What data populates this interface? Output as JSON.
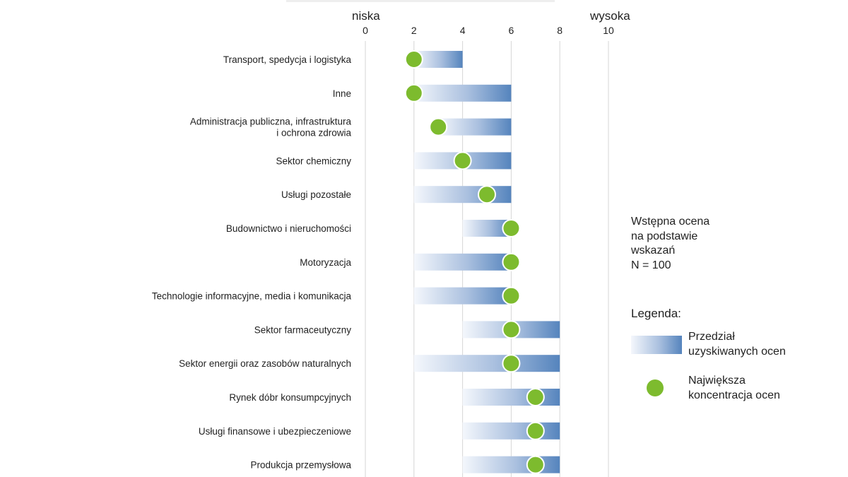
{
  "chart_data": {
    "type": "range-bar",
    "axis": {
      "low_label": "niska",
      "high_label": "wysoka",
      "ticks": [
        0,
        2,
        4,
        6,
        8,
        10
      ],
      "range": [
        0,
        10
      ]
    },
    "categories": [
      "Transport, spedycja i logistyka",
      "Inne",
      "Administracja publiczna, infrastruktura\ni ochrona zdrowia",
      "Sektor chemiczny",
      "Usługi pozostałe",
      "Budownictwo i nieruchomości",
      "Motoryzacja",
      "Technologie informacyjne, media i komunikacja",
      "Sektor farmaceutyczny",
      "Sektor energii oraz zasobów naturalnych",
      "Rynek dóbr konsumpcyjnych",
      "Usługi finansowe i ubezpieczeniowe",
      "Produkcja przemysłowa"
    ],
    "ranges": [
      [
        2,
        4
      ],
      [
        2,
        6
      ],
      [
        3,
        6
      ],
      [
        2,
        6
      ],
      [
        2,
        6
      ],
      [
        4,
        6
      ],
      [
        2,
        6
      ],
      [
        2,
        6
      ],
      [
        4,
        8
      ],
      [
        2,
        8
      ],
      [
        4,
        8
      ],
      [
        4,
        8
      ],
      [
        4,
        8
      ]
    ],
    "peaks": [
      2,
      2,
      3,
      4,
      5,
      6,
      6,
      6,
      6,
      6,
      7,
      7,
      7
    ],
    "colors": {
      "bar_light": "#f4f7fc",
      "bar_dark": "#5584bd",
      "dot": "#7dbb2e",
      "grid": "#d6d6d6"
    }
  },
  "note": {
    "line1": "Wstępna ocena",
    "line2": "na podstawie",
    "line3": "wskazań",
    "line4": "N = 100"
  },
  "legend": {
    "title": "Legenda:",
    "range_line1": "Przedział",
    "range_line2": "uzyskiwanych ocen",
    "dot_line1": "Największa",
    "dot_line2": "koncentracja ocen"
  }
}
